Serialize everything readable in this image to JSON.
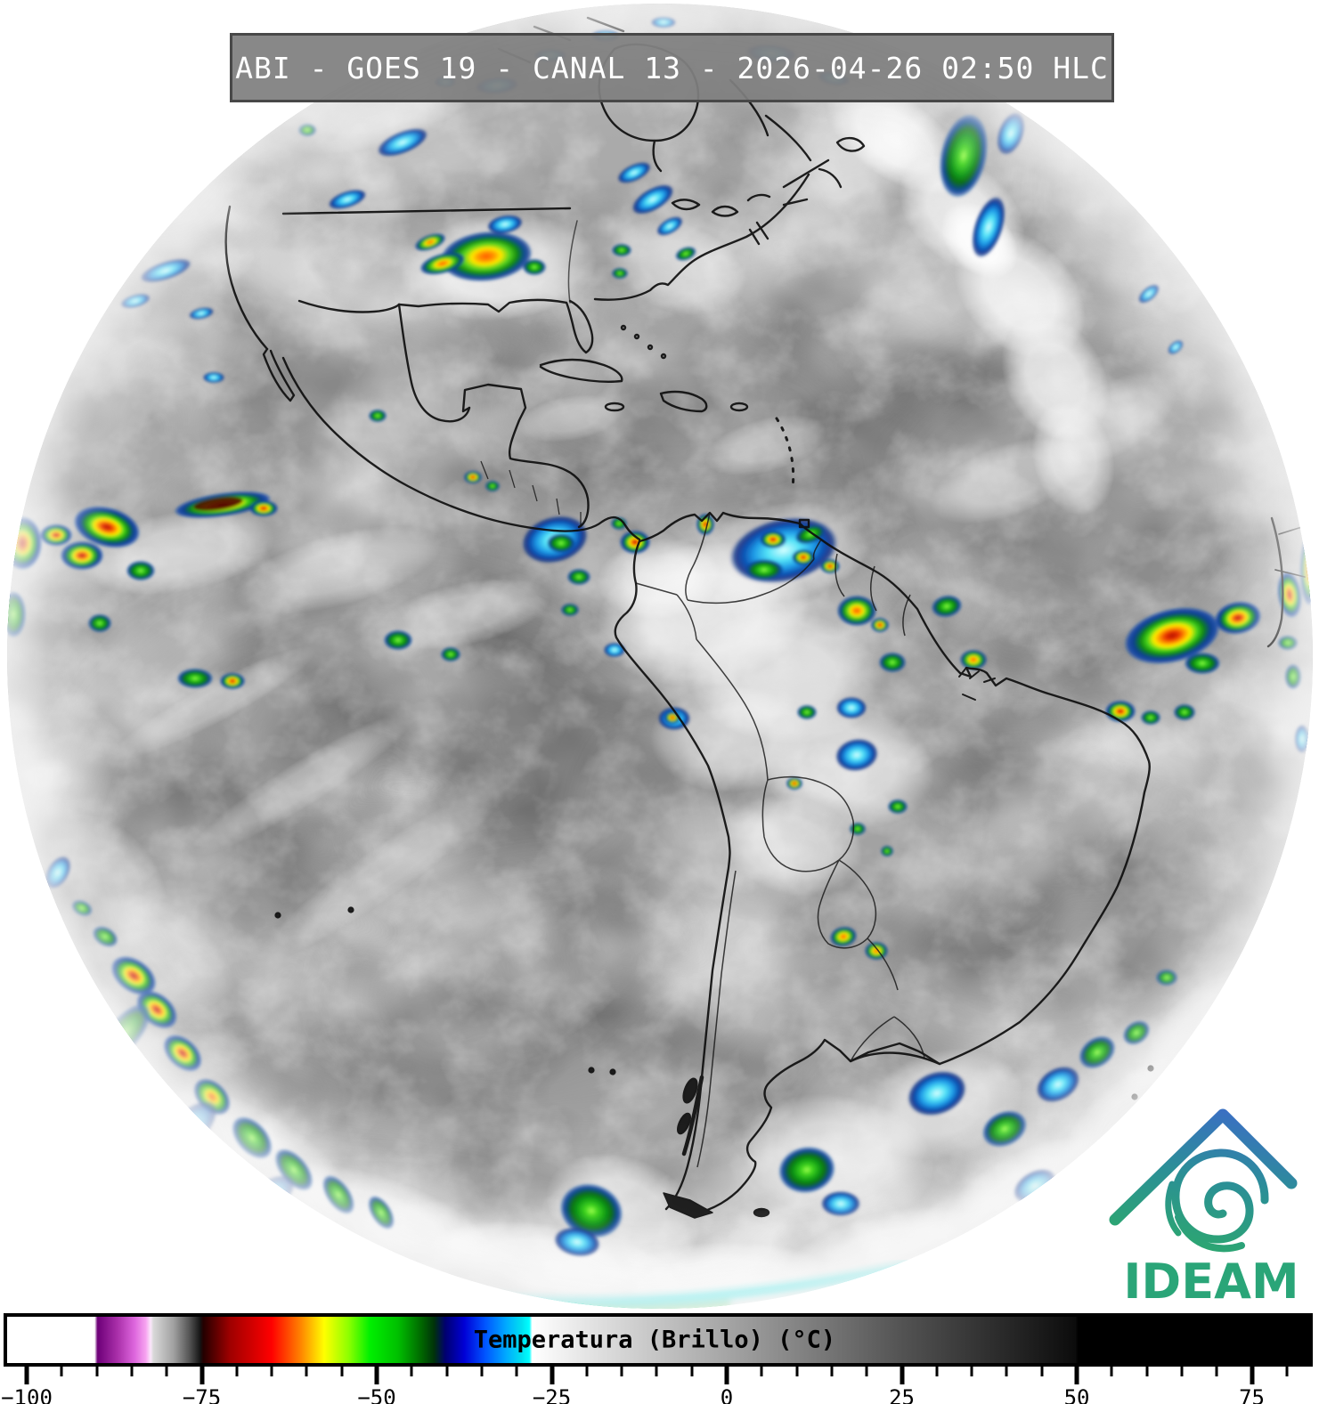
{
  "header": {
    "title": "ABI - GOES 19 - CANAL 13 - 2026-04-26 02:50 HLC",
    "instrument": "ABI",
    "satellite": "GOES 19",
    "channel": "CANAL 13",
    "datetime": "2026-04-26 02:50",
    "timezone": "HLC"
  },
  "colorbar": {
    "title": "Temperatura (Brillo) (°C)",
    "domain": {
      "min": -102.8,
      "max": 83.2
    },
    "major_ticks": [
      {
        "t": -100,
        "label": "−100"
      },
      {
        "t": -75,
        "label": "−75"
      },
      {
        "t": -50,
        "label": "−50"
      },
      {
        "t": -25,
        "label": "−25"
      },
      {
        "t": 0,
        "label": "0"
      },
      {
        "t": 25,
        "label": "25"
      },
      {
        "t": 50,
        "label": "50"
      },
      {
        "t": 75,
        "label": "75"
      }
    ],
    "minor_ticks": [
      -95,
      -90,
      -85,
      -80,
      -70,
      -65,
      -60,
      -55,
      -45,
      -40,
      -35,
      -30,
      -20,
      -15,
      -10,
      -5,
      5,
      10,
      15,
      20,
      30,
      35,
      40,
      45,
      55,
      60,
      65,
      70,
      80
    ],
    "gradient": [
      {
        "t": -102.8,
        "color": "#ffffff"
      },
      {
        "t": -90.3,
        "color": "#ffffff"
      },
      {
        "t": -89.9,
        "color": "#6d0078"
      },
      {
        "t": -87.0,
        "color": "#aa30aa"
      },
      {
        "t": -84.6,
        "color": "#dd66dd"
      },
      {
        "t": -83.0,
        "color": "#f7a3f0"
      },
      {
        "t": -82.3,
        "color": "#fbe7fb"
      },
      {
        "t": -81.9,
        "color": "#d8d8d8"
      },
      {
        "t": -79.0,
        "color": "#a0a0a0"
      },
      {
        "t": -76.8,
        "color": "#565656"
      },
      {
        "t": -75.2,
        "color": "#141414"
      },
      {
        "t": -74.8,
        "color": "#230000"
      },
      {
        "t": -71.0,
        "color": "#9e0000"
      },
      {
        "t": -65.0,
        "color": "#ff0000"
      },
      {
        "t": -61.0,
        "color": "#ff7f00"
      },
      {
        "t": -57.5,
        "color": "#ffff00"
      },
      {
        "t": -54.0,
        "color": "#8cff00"
      },
      {
        "t": -51.0,
        "color": "#00f000"
      },
      {
        "t": -47.0,
        "color": "#00c000"
      },
      {
        "t": -43.5,
        "color": "#006400"
      },
      {
        "t": -41.8,
        "color": "#00320a"
      },
      {
        "t": -40.2,
        "color": "#000070"
      },
      {
        "t": -37.5,
        "color": "#0000d6"
      },
      {
        "t": -34.5,
        "color": "#0055ff"
      },
      {
        "t": -31.5,
        "color": "#00aaff"
      },
      {
        "t": -29.3,
        "color": "#00e0f0"
      },
      {
        "t": -28.2,
        "color": "#00ffff"
      },
      {
        "t": -27.8,
        "color": "#ffffff"
      },
      {
        "t": -20.0,
        "color": "#e4e4e4"
      },
      {
        "t": 0.0,
        "color": "#a5a5a5"
      },
      {
        "t": 25.0,
        "color": "#535353"
      },
      {
        "t": 49.8,
        "color": "#0c0c0c"
      },
      {
        "t": 50.2,
        "color": "#000000"
      },
      {
        "t": 83.2,
        "color": "#000000"
      }
    ]
  },
  "logo": {
    "text": "IDEAM",
    "green": "#2aa578",
    "teal": "#2b8f96",
    "blue": "#3a70c2"
  }
}
